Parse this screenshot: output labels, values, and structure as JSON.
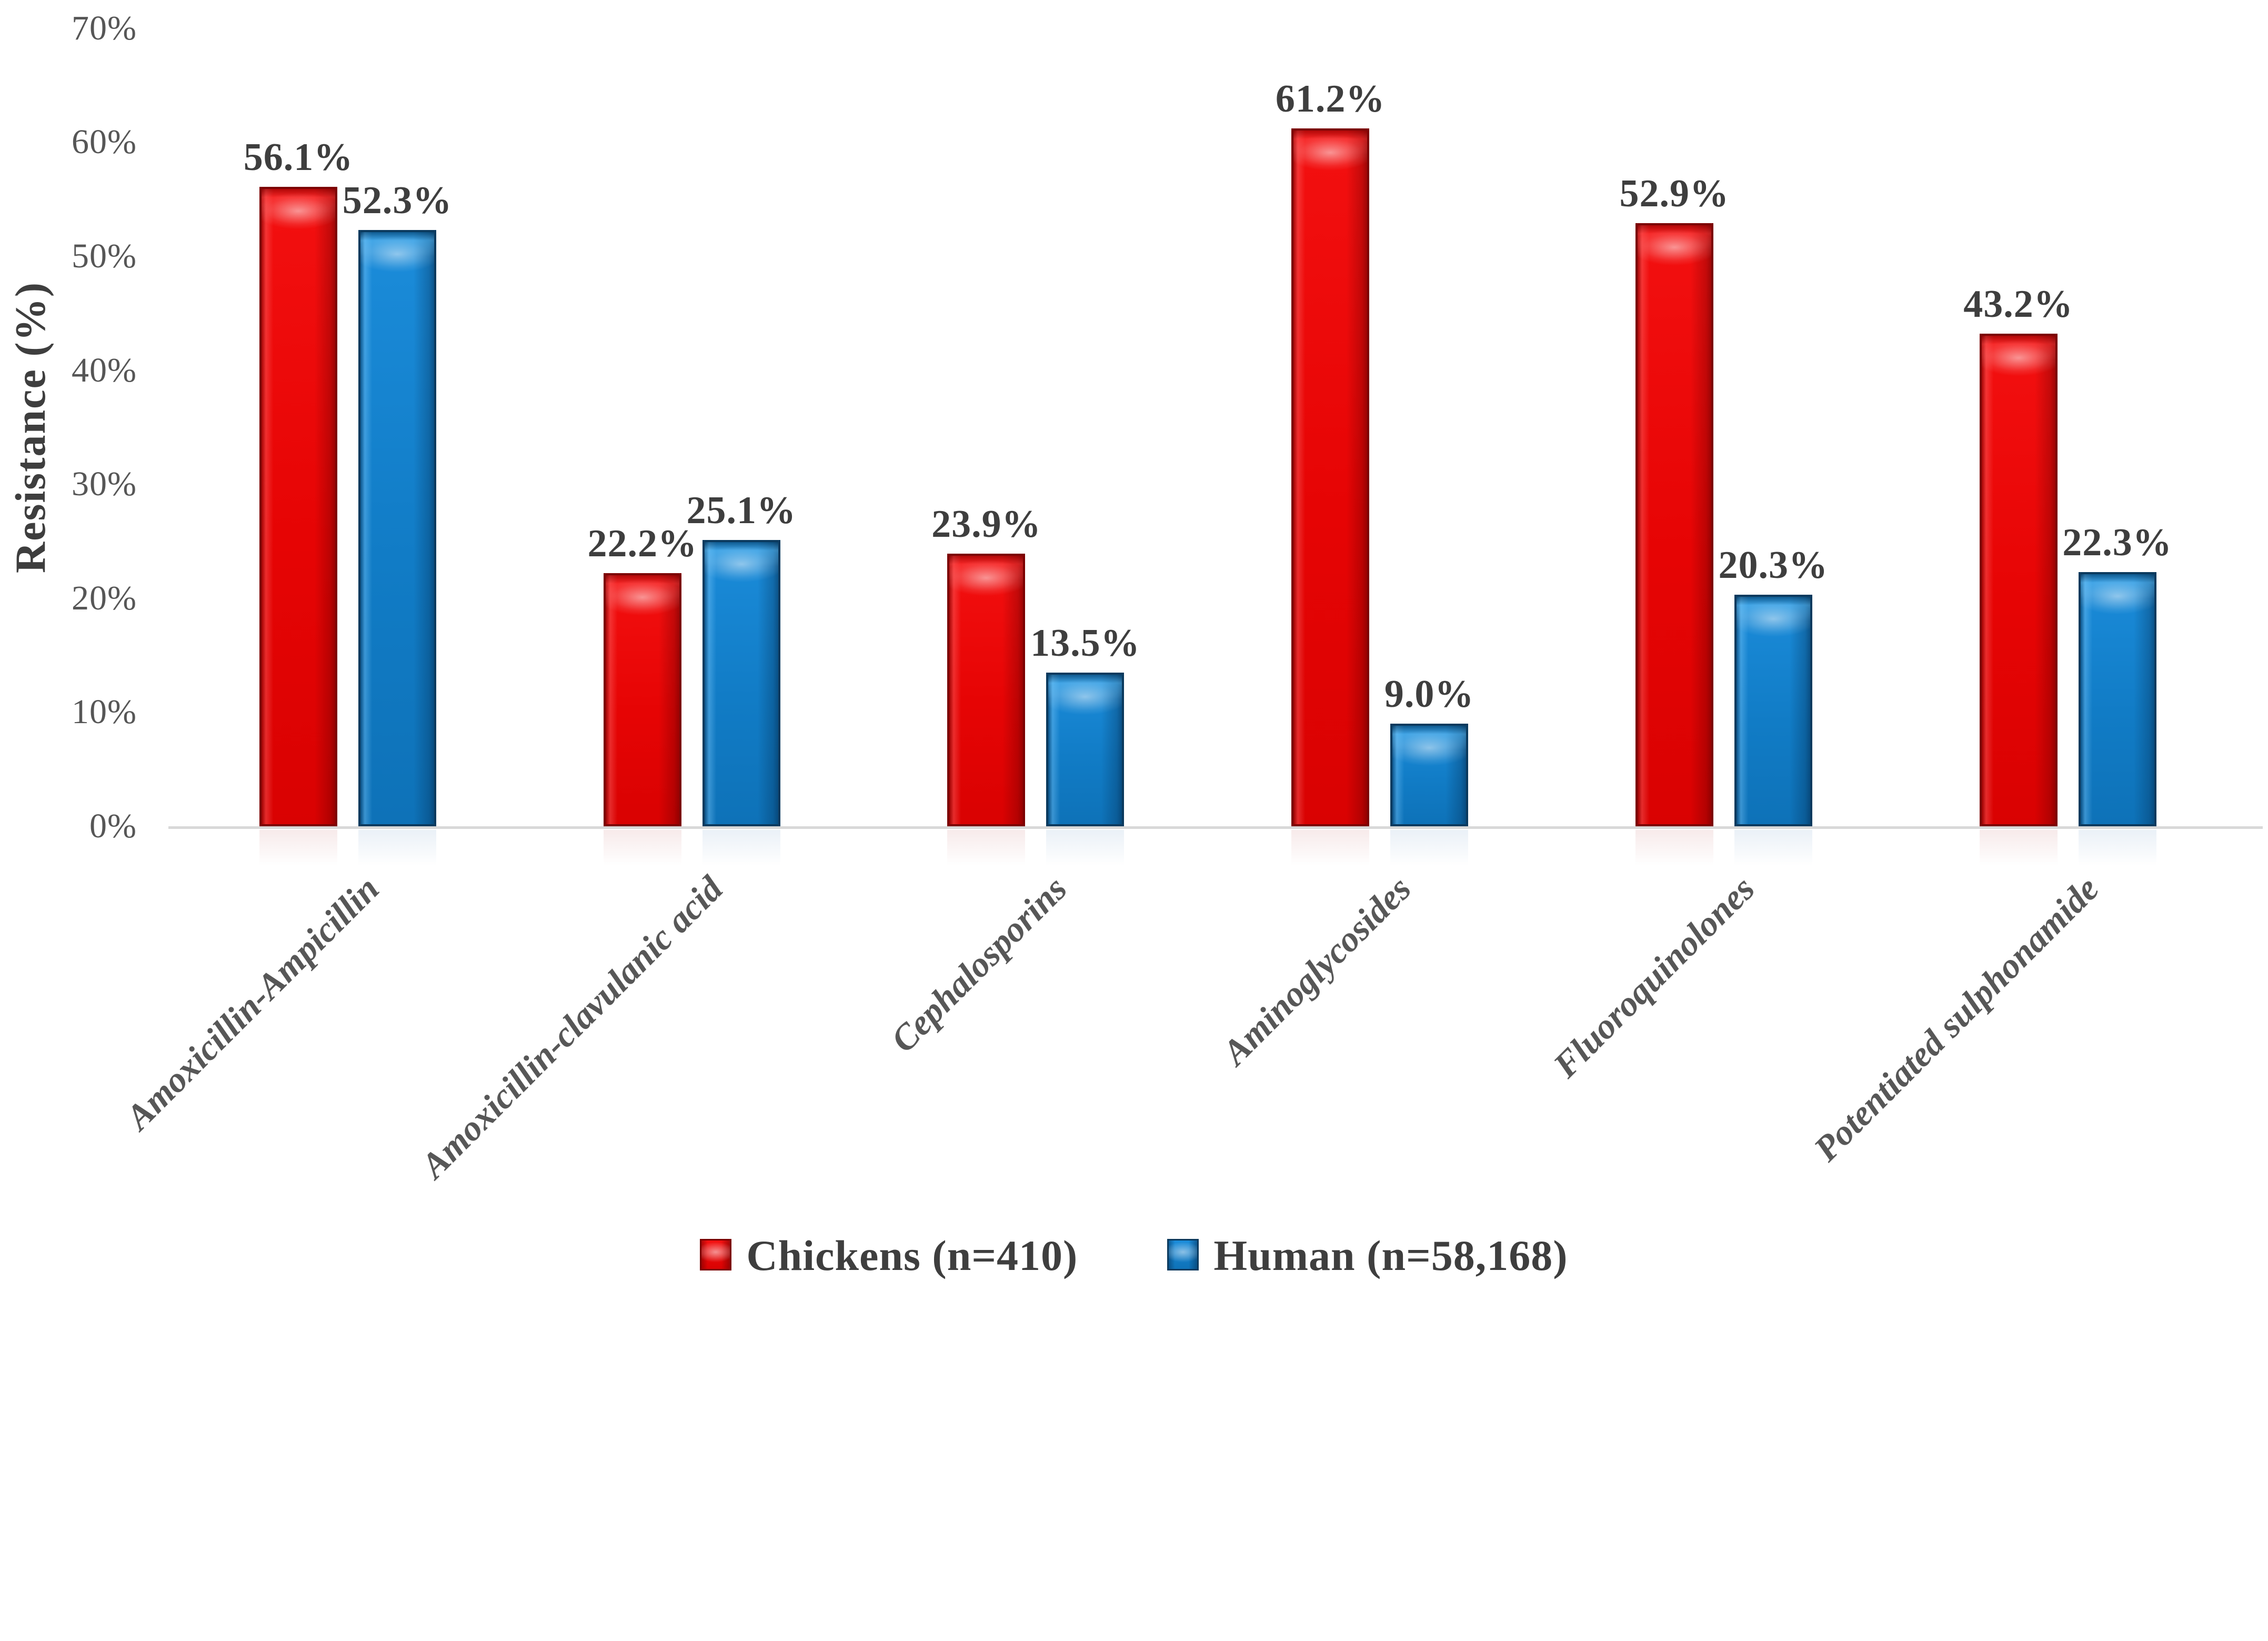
{
  "chart_data": {
    "type": "bar",
    "title": "",
    "categories": [
      "Amoxicillin-Ampicillin",
      "Amoxicillin-clavulanic acid",
      "Cephalosporins",
      "Aminoglycosides",
      "Fluoroquinolones",
      "Potentiated sulphonamide"
    ],
    "series": [
      {
        "name": "Chickens (n=410)",
        "color": "#E60404",
        "edge_color": "#7C0202",
        "values": [
          56.1,
          22.2,
          23.9,
          61.2,
          52.9,
          43.2
        ],
        "labels": [
          "56.1%",
          "22.2%",
          "23.9%",
          "61.2%",
          "52.9%",
          "43.2%"
        ]
      },
      {
        "name": "Human (n=58,168)",
        "color": "#117CC6",
        "edge_color": "#0B3A5E",
        "values": [
          52.3,
          25.1,
          13.5,
          9.0,
          20.3,
          22.3
        ],
        "labels": [
          "52.3%",
          "25.1%",
          "13.5%",
          "9.0%",
          "20.3%",
          "22.3%"
        ]
      }
    ],
    "ylabel": "Resistance (%)",
    "xlabel": "",
    "ylim": [
      0,
      70
    ],
    "yticks": [
      0,
      10,
      20,
      30,
      40,
      50,
      60,
      70
    ],
    "ytick_labels": [
      "0%",
      "10%",
      "20%",
      "30%",
      "40%",
      "50%",
      "60%",
      "70%"
    ],
    "grid": false,
    "legend_position": "bottom",
    "axis_line_color": "#D8D8D8",
    "tick_text_color": "#565656",
    "label_text_color": "#3E3E3E"
  }
}
